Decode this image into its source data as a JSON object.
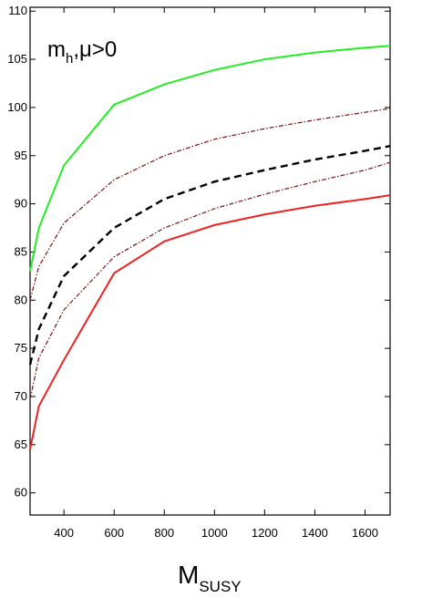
{
  "chart_data": {
    "type": "line",
    "annotation": {
      "main": "m",
      "sub": "h",
      "rest": ",μ>0"
    },
    "x_label": {
      "main": "M",
      "sub": "SUSY"
    },
    "x": [
      265,
      300,
      400,
      600,
      800,
      1000,
      1200,
      1400,
      1600,
      1700
    ],
    "series": [
      {
        "color": "#22ee22",
        "style": "solid",
        "values": [
          83,
          87.5,
          94,
          100.3,
          102.4,
          103.9,
          105,
          105.7,
          106.2,
          106.4
        ]
      },
      {
        "color": "#7a1010",
        "style": "dashdot",
        "values": [
          80,
          83.5,
          88,
          92.5,
          95,
          96.7,
          97.8,
          98.7,
          99.5,
          99.9
        ]
      },
      {
        "color": "#000000",
        "style": "dashed",
        "values": [
          73.3,
          77,
          82.5,
          87.5,
          90.5,
          92.3,
          93.5,
          94.6,
          95.5,
          96
        ]
      },
      {
        "color": "#7a1010",
        "style": "dashdot",
        "values": [
          69.7,
          74,
          79,
          84.5,
          87.5,
          89.5,
          91,
          92.3,
          93.5,
          94.3
        ]
      },
      {
        "color": "#ee2222",
        "style": "solid",
        "values": [
          64.5,
          69,
          73.8,
          82.8,
          86.1,
          87.8,
          88.9,
          89.8,
          90.5,
          90.9
        ]
      }
    ],
    "xlim": [
      265,
      1700
    ],
    "ylim": [
      57.7,
      110.4
    ],
    "xticks": [
      400,
      600,
      800,
      1000,
      1200,
      1400,
      1600
    ],
    "yticks": [
      60,
      65,
      70,
      75,
      80,
      85,
      90,
      95,
      100,
      105,
      110
    ]
  }
}
